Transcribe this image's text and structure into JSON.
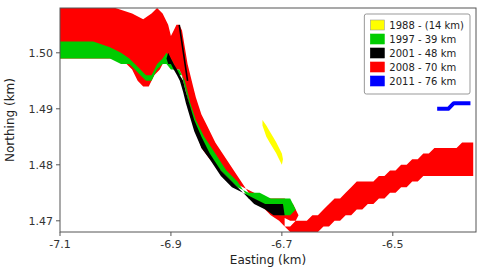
{
  "chart_data": {
    "type": "polygon",
    "xlabel": "Easting (km)",
    "ylabel": "Northing (km)",
    "xlim": [
      -7.1,
      -6.35
    ],
    "ylim": [
      1.468,
      1.508
    ],
    "xticks": [
      -7.1,
      -6.9,
      -6.7,
      -6.5
    ],
    "yticks": [
      1.47,
      1.48,
      1.49,
      {
        "value": 1.5,
        "label": "1.50"
      }
    ],
    "legend": "upper right",
    "series": [
      {
        "name": "2008 - 70 km",
        "color": "#ff0000",
        "type": "polygon",
        "x": [
          -7.1,
          -7.05,
          -7.0,
          -6.97,
          -6.95,
          -6.935,
          -6.925,
          -6.915,
          -6.905,
          -6.9,
          -6.895,
          -6.89,
          -6.885,
          -6.88,
          -6.875,
          -6.87,
          -6.865,
          -6.86,
          -6.855,
          -6.845,
          -6.835,
          -6.82,
          -6.8,
          -6.78,
          -6.76,
          -6.74,
          -6.72,
          -6.705,
          -6.695,
          -6.685,
          -6.675,
          -6.67,
          -6.68,
          -6.695,
          -6.71,
          -6.73,
          -6.75,
          -6.77,
          -6.79,
          -6.81,
          -6.83,
          -6.845,
          -6.855,
          -6.86,
          -6.865,
          -6.87,
          -6.875,
          -6.88,
          -6.885,
          -6.89,
          -6.895,
          -6.9,
          -6.91,
          -6.915,
          -6.92,
          -6.93,
          -6.94,
          -6.95,
          -6.96,
          -6.97,
          -6.98,
          -7.0,
          -7.02,
          -7.05,
          -7.08,
          -7.1,
          null,
          -6.695,
          -6.685,
          -6.675,
          -6.665,
          -6.655,
          -6.645,
          -6.635,
          -6.625,
          -6.615,
          -6.605,
          -6.595,
          -6.585,
          -6.575,
          -6.565,
          -6.555,
          -6.545,
          -6.535,
          -6.525,
          -6.515,
          -6.505,
          -6.495,
          -6.485,
          -6.475,
          -6.465,
          -6.455,
          -6.445,
          -6.435,
          -6.425,
          -6.415,
          -6.405,
          -6.395,
          -6.385,
          -6.375,
          -6.365,
          -6.355,
          -6.355,
          -6.365,
          -6.375,
          -6.385,
          -6.395,
          -6.405,
          -6.415,
          -6.425,
          -6.435,
          -6.445,
          -6.455,
          -6.465,
          -6.475,
          -6.485,
          -6.495,
          -6.505,
          -6.515,
          -6.525,
          -6.535,
          -6.545,
          -6.555,
          -6.565,
          -6.575,
          -6.585,
          -6.595,
          -6.605,
          -6.615,
          -6.625,
          -6.635,
          -6.645,
          -6.655,
          -6.665,
          -6.675,
          -6.685,
          -6.695
        ],
        "values": [
          1.508,
          1.508,
          1.508,
          1.507,
          1.506,
          1.507,
          1.508,
          1.507,
          1.505,
          1.503,
          1.504,
          1.505,
          1.505,
          1.504,
          1.501,
          1.498,
          1.496,
          1.494,
          1.492,
          1.489,
          1.487,
          1.484,
          1.481,
          1.478,
          1.475,
          1.473,
          1.471,
          1.47,
          1.469,
          1.469,
          1.47,
          1.471,
          1.473,
          1.474,
          1.474,
          1.474,
          1.475,
          1.476,
          1.477,
          1.479,
          1.481,
          1.483,
          1.486,
          1.488,
          1.49,
          1.492,
          1.494,
          1.496,
          1.497,
          1.497,
          1.497,
          1.498,
          1.499,
          1.498,
          1.497,
          1.496,
          1.494,
          1.494,
          1.495,
          1.497,
          1.498,
          1.499,
          1.499,
          1.499,
          1.499,
          1.499,
          null,
          1.4705,
          1.47,
          1.47,
          1.47,
          1.47,
          1.471,
          1.471,
          1.472,
          1.473,
          1.474,
          1.474,
          1.475,
          1.476,
          1.477,
          1.477,
          1.477,
          1.477,
          1.478,
          1.478,
          1.479,
          1.479,
          1.48,
          1.48,
          1.481,
          1.481,
          1.482,
          1.482,
          1.483,
          1.483,
          1.483,
          1.483,
          1.483,
          1.484,
          1.484,
          1.484,
          1.478,
          1.478,
          1.478,
          1.478,
          1.478,
          1.478,
          1.478,
          1.478,
          1.478,
          1.478,
          1.477,
          1.477,
          1.476,
          1.476,
          1.475,
          1.475,
          1.474,
          1.474,
          1.473,
          1.473,
          1.472,
          1.472,
          1.471,
          1.471,
          1.47,
          1.47,
          1.469,
          1.469,
          1.468,
          1.468,
          1.468,
          1.468,
          1.468,
          1.468,
          1.469
        ]
      },
      {
        "name": "1997 - 39 km",
        "color": "#00cc00",
        "type": "polygon",
        "x": [
          -7.1,
          -7.07,
          -7.04,
          -7.01,
          -6.99,
          -6.975,
          -6.965,
          -6.955,
          -6.945,
          -6.935,
          -6.925,
          -6.915,
          -6.908,
          -6.9,
          -6.895,
          -6.89,
          -6.885,
          -6.88,
          -6.875,
          -6.87,
          -6.865,
          -6.855,
          -6.84,
          -6.82,
          -6.8,
          -6.78,
          -6.76,
          -6.74,
          -6.72,
          -6.705,
          -6.695,
          -6.685,
          -6.675,
          -6.685,
          -6.7,
          -6.72,
          -6.74,
          -6.76,
          -6.78,
          -6.8,
          -6.82,
          -6.84,
          -6.855,
          -6.86,
          -6.865,
          -6.87,
          -6.875,
          -6.88,
          -6.885,
          -6.89,
          -6.895,
          -6.9,
          -6.908,
          -6.915,
          -6.925,
          -6.935,
          -6.945,
          -6.955,
          -6.965,
          -6.975,
          -6.99,
          -7.01,
          -7.04,
          -7.07,
          -7.1
        ],
        "values": [
          1.502,
          1.502,
          1.502,
          1.501,
          1.5,
          1.499,
          1.498,
          1.497,
          1.496,
          1.496,
          1.498,
          1.499,
          1.5,
          1.499,
          1.498,
          1.497,
          1.497,
          1.496,
          1.495,
          1.493,
          1.491,
          1.488,
          1.485,
          1.482,
          1.479,
          1.477,
          1.474,
          1.473,
          1.472,
          1.471,
          1.471,
          1.471,
          1.472,
          1.474,
          1.474,
          1.474,
          1.475,
          1.475,
          1.476,
          1.478,
          1.48,
          1.483,
          1.486,
          1.488,
          1.49,
          1.492,
          1.494,
          1.496,
          1.496,
          1.497,
          1.497,
          1.497,
          1.498,
          1.498,
          1.497,
          1.495,
          1.495,
          1.496,
          1.497,
          1.498,
          1.498,
          1.499,
          1.499,
          1.499,
          1.499
        ]
      },
      {
        "name": "2001 - 48 km",
        "color": "#000000",
        "type": "polygon",
        "x": [
          -6.908,
          -6.905,
          -6.9,
          -6.895,
          -6.889,
          -6.884,
          -6.878,
          -6.873,
          -6.867,
          -6.858,
          -6.845,
          -6.83,
          -6.81,
          -6.79,
          -6.77,
          -6.75,
          -6.73,
          -6.715,
          -6.7,
          -6.695,
          -6.698,
          -6.71,
          -6.73,
          -6.75,
          -6.77,
          -6.79,
          -6.81,
          -6.83,
          -6.845,
          -6.858,
          -6.867,
          -6.873,
          -6.878,
          -6.884,
          -6.889,
          -6.895,
          -6.9,
          -6.905,
          -6.908
        ],
        "values": [
          1.499,
          1.5,
          1.499,
          1.498,
          1.497,
          1.496,
          1.495,
          1.493,
          1.491,
          1.488,
          1.485,
          1.482,
          1.479,
          1.477,
          1.475,
          1.473,
          1.472,
          1.471,
          1.471,
          1.471,
          1.473,
          1.473,
          1.473,
          1.474,
          1.475,
          1.476,
          1.478,
          1.481,
          1.483,
          1.486,
          1.489,
          1.491,
          1.493,
          1.495,
          1.496,
          1.497,
          1.498,
          1.498,
          1.499
        ]
      },
      {
        "name": "1988 - (14 km)",
        "color": "#ffff00",
        "type": "polygon",
        "x": [
          -6.735,
          -6.728,
          -6.722,
          -6.716,
          -6.71,
          -6.705,
          -6.7,
          -6.698,
          -6.7,
          -6.705,
          -6.71,
          -6.716,
          -6.722,
          -6.728,
          -6.735
        ],
        "values": [
          1.488,
          1.487,
          1.486,
          1.485,
          1.484,
          1.483,
          1.482,
          1.481,
          1.48,
          1.481,
          1.482,
          1.483,
          1.484,
          1.485,
          1.487
        ]
      },
      {
        "name": "2001 - 48 km",
        "color": "#000000",
        "type": "line",
        "x": [
          -6.885,
          -6.882,
          -6.879,
          -6.876,
          -6.873,
          -6.87
        ],
        "values": [
          1.505,
          1.503,
          1.501,
          1.499,
          1.497,
          1.495
        ]
      },
      {
        "name": "2011 - 76 km",
        "color": "#0000ff",
        "type": "line",
        "x": [
          -6.42,
          -6.41,
          -6.4,
          -6.39,
          -6.38,
          -6.37,
          -6.36
        ],
        "values": [
          1.49,
          1.49,
          1.49,
          1.491,
          1.491,
          1.491,
          1.491
        ]
      }
    ]
  }
}
